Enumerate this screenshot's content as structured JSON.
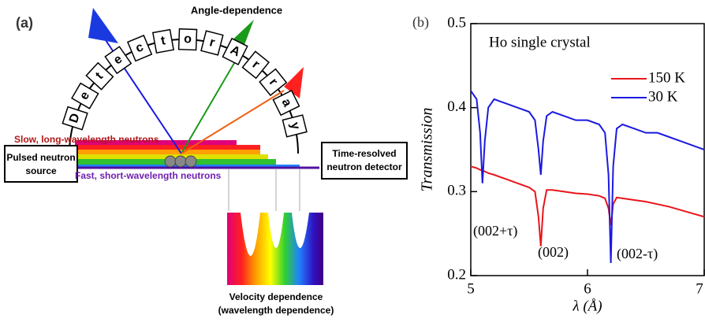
{
  "diagram": {
    "panel_label": "(a)",
    "angle_label": "Angle-dependence",
    "detector_letters": [
      "D",
      "e",
      "t",
      "e",
      "c",
      "t",
      "o",
      "r",
      "A",
      "r",
      "r",
      "a",
      "y"
    ],
    "slow_label": "Slow, long-wavelength neutrons",
    "source_label": [
      "Pulsed neutron",
      "source"
    ],
    "fast_label": "Fast, short-wavelength neutrons",
    "detector_label": [
      "Time-resolved",
      "neutron detector"
    ],
    "velocity_label": [
      "Velocity dependence",
      "(wavelength dependence)"
    ]
  },
  "chart_data": {
    "type": "line",
    "panel_label": "(b)",
    "title": "Ho single crystal",
    "xlabel": "λ (Å)",
    "ylabel": "Transmission",
    "annotations": [
      "(002+τ)",
      "(002)",
      "(002-τ)"
    ],
    "x": [
      5.0,
      5.05,
      5.08,
      5.1,
      5.12,
      5.15,
      5.2,
      5.3,
      5.4,
      5.5,
      5.55,
      5.58,
      5.6,
      5.62,
      5.65,
      5.7,
      5.8,
      5.9,
      6.0,
      6.1,
      6.15,
      6.18,
      6.2,
      6.22,
      6.25,
      6.3,
      6.4,
      6.5,
      6.6,
      6.7,
      6.8,
      6.9,
      7.0
    ],
    "series": [
      {
        "name": "150 K",
        "color": "#e8151b",
        "values": [
          0.33,
          0.328,
          0.326,
          0.325,
          0.324,
          0.322,
          0.32,
          0.315,
          0.31,
          0.305,
          0.3,
          0.27,
          0.235,
          0.28,
          0.302,
          0.302,
          0.3,
          0.298,
          0.297,
          0.295,
          0.292,
          0.28,
          0.26,
          0.285,
          0.293,
          0.292,
          0.29,
          0.288,
          0.285,
          0.282,
          0.278,
          0.274,
          0.27
        ]
      },
      {
        "name": "30 K",
        "color": "#1a1ae0",
        "values": [
          0.42,
          0.41,
          0.37,
          0.31,
          0.36,
          0.4,
          0.41,
          0.405,
          0.4,
          0.395,
          0.385,
          0.35,
          0.32,
          0.36,
          0.39,
          0.395,
          0.39,
          0.385,
          0.385,
          0.38,
          0.37,
          0.32,
          0.215,
          0.33,
          0.375,
          0.38,
          0.375,
          0.37,
          0.37,
          0.365,
          0.36,
          0.355,
          0.35
        ]
      }
    ],
    "xlim": [
      5,
      7
    ],
    "xticks": [
      5,
      6,
      7
    ],
    "ylim": [
      0.2,
      0.5
    ],
    "yticks": [
      0.2,
      0.3,
      0.4,
      0.5
    ],
    "legend": "upper right"
  }
}
